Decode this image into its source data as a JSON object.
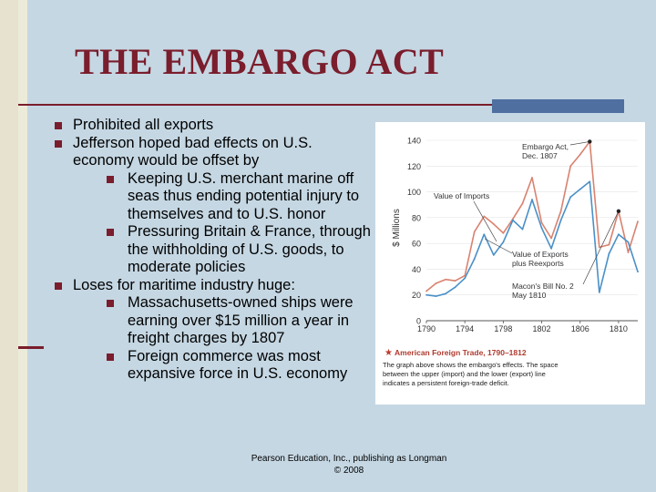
{
  "slide": {
    "title": "THE EMBARGO ACT",
    "footer_line1": "Pearson Education, Inc., publishing as Longman",
    "footer_line2": "© 2008",
    "colors": {
      "title": "#7a1d2c",
      "bullet": "#7a1d2c",
      "imports": "#d9826f",
      "exports": "#4a90c8",
      "accent_bar": "#4f6fa0"
    }
  },
  "bullets": [
    {
      "level": 1,
      "text": "Prohibited all exports"
    },
    {
      "level": 1,
      "text": "Jefferson hoped bad effects on U.S. economy would be offset by"
    },
    {
      "level": 2,
      "text": "Keeping U.S. merchant marine off seas thus ending potential injury to themselves and to U.S. honor"
    },
    {
      "level": 2,
      "text": "Pressuring Britain & France, through the withholding of U.S. goods, to moderate policies"
    },
    {
      "level": 1,
      "text": "Loses for maritime industry huge:"
    },
    {
      "level": 2,
      "text": "Massachusetts-owned ships were earning over $15 million a year in freight charges by 1807"
    },
    {
      "level": 2,
      "text": "Foreign commerce was most expansive force in U.S. economy"
    }
  ],
  "chart_data": {
    "type": "line",
    "title": "American Foreign Trade, 1790–1812",
    "caption": "The graph above shows the embargo's effects. The space between the upper (import) and the lower (export) line indicates a persistent foreign-trade deficit.",
    "ylabel": "$ Millions",
    "xlabel": "",
    "ylim": [
      0,
      140
    ],
    "xlim": [
      1790,
      1812
    ],
    "yticks": [
      0,
      20,
      40,
      60,
      80,
      100,
      120,
      140
    ],
    "xticks": [
      1790,
      1794,
      1798,
      1802,
      1806,
      1810
    ],
    "x": [
      1790,
      1791,
      1792,
      1793,
      1794,
      1795,
      1796,
      1797,
      1798,
      1799,
      1800,
      1801,
      1802,
      1803,
      1804,
      1805,
      1806,
      1807,
      1808,
      1809,
      1810,
      1811,
      1812
    ],
    "series": [
      {
        "name": "Value of Imports",
        "values": [
          23,
          29,
          32,
          31,
          35,
          69,
          81,
          75,
          68,
          79,
          91,
          111,
          76,
          64,
          85,
          120,
          129,
          139,
          57,
          59,
          85,
          53,
          77
        ]
      },
      {
        "name": "Value of Exports plus Reexports",
        "values": [
          20,
          19,
          21,
          26,
          33,
          48,
          67,
          51,
          61,
          78,
          71,
          94,
          72,
          56,
          78,
          96,
          102,
          108,
          22,
          52,
          67,
          61,
          38
        ]
      }
    ],
    "series_labels": {
      "imports": "Value of Imports",
      "exports_line1": "Value of Exports",
      "exports_line2": "plus Reexports"
    },
    "annotations": [
      {
        "text_line1": "Embargo Act,",
        "text_line2": "Dec. 1807",
        "year": 1807,
        "value": 139
      },
      {
        "text_line1": "Macon's Bill No. 2",
        "text_line2": "May 1810",
        "year": 1810,
        "value": 85
      }
    ]
  }
}
